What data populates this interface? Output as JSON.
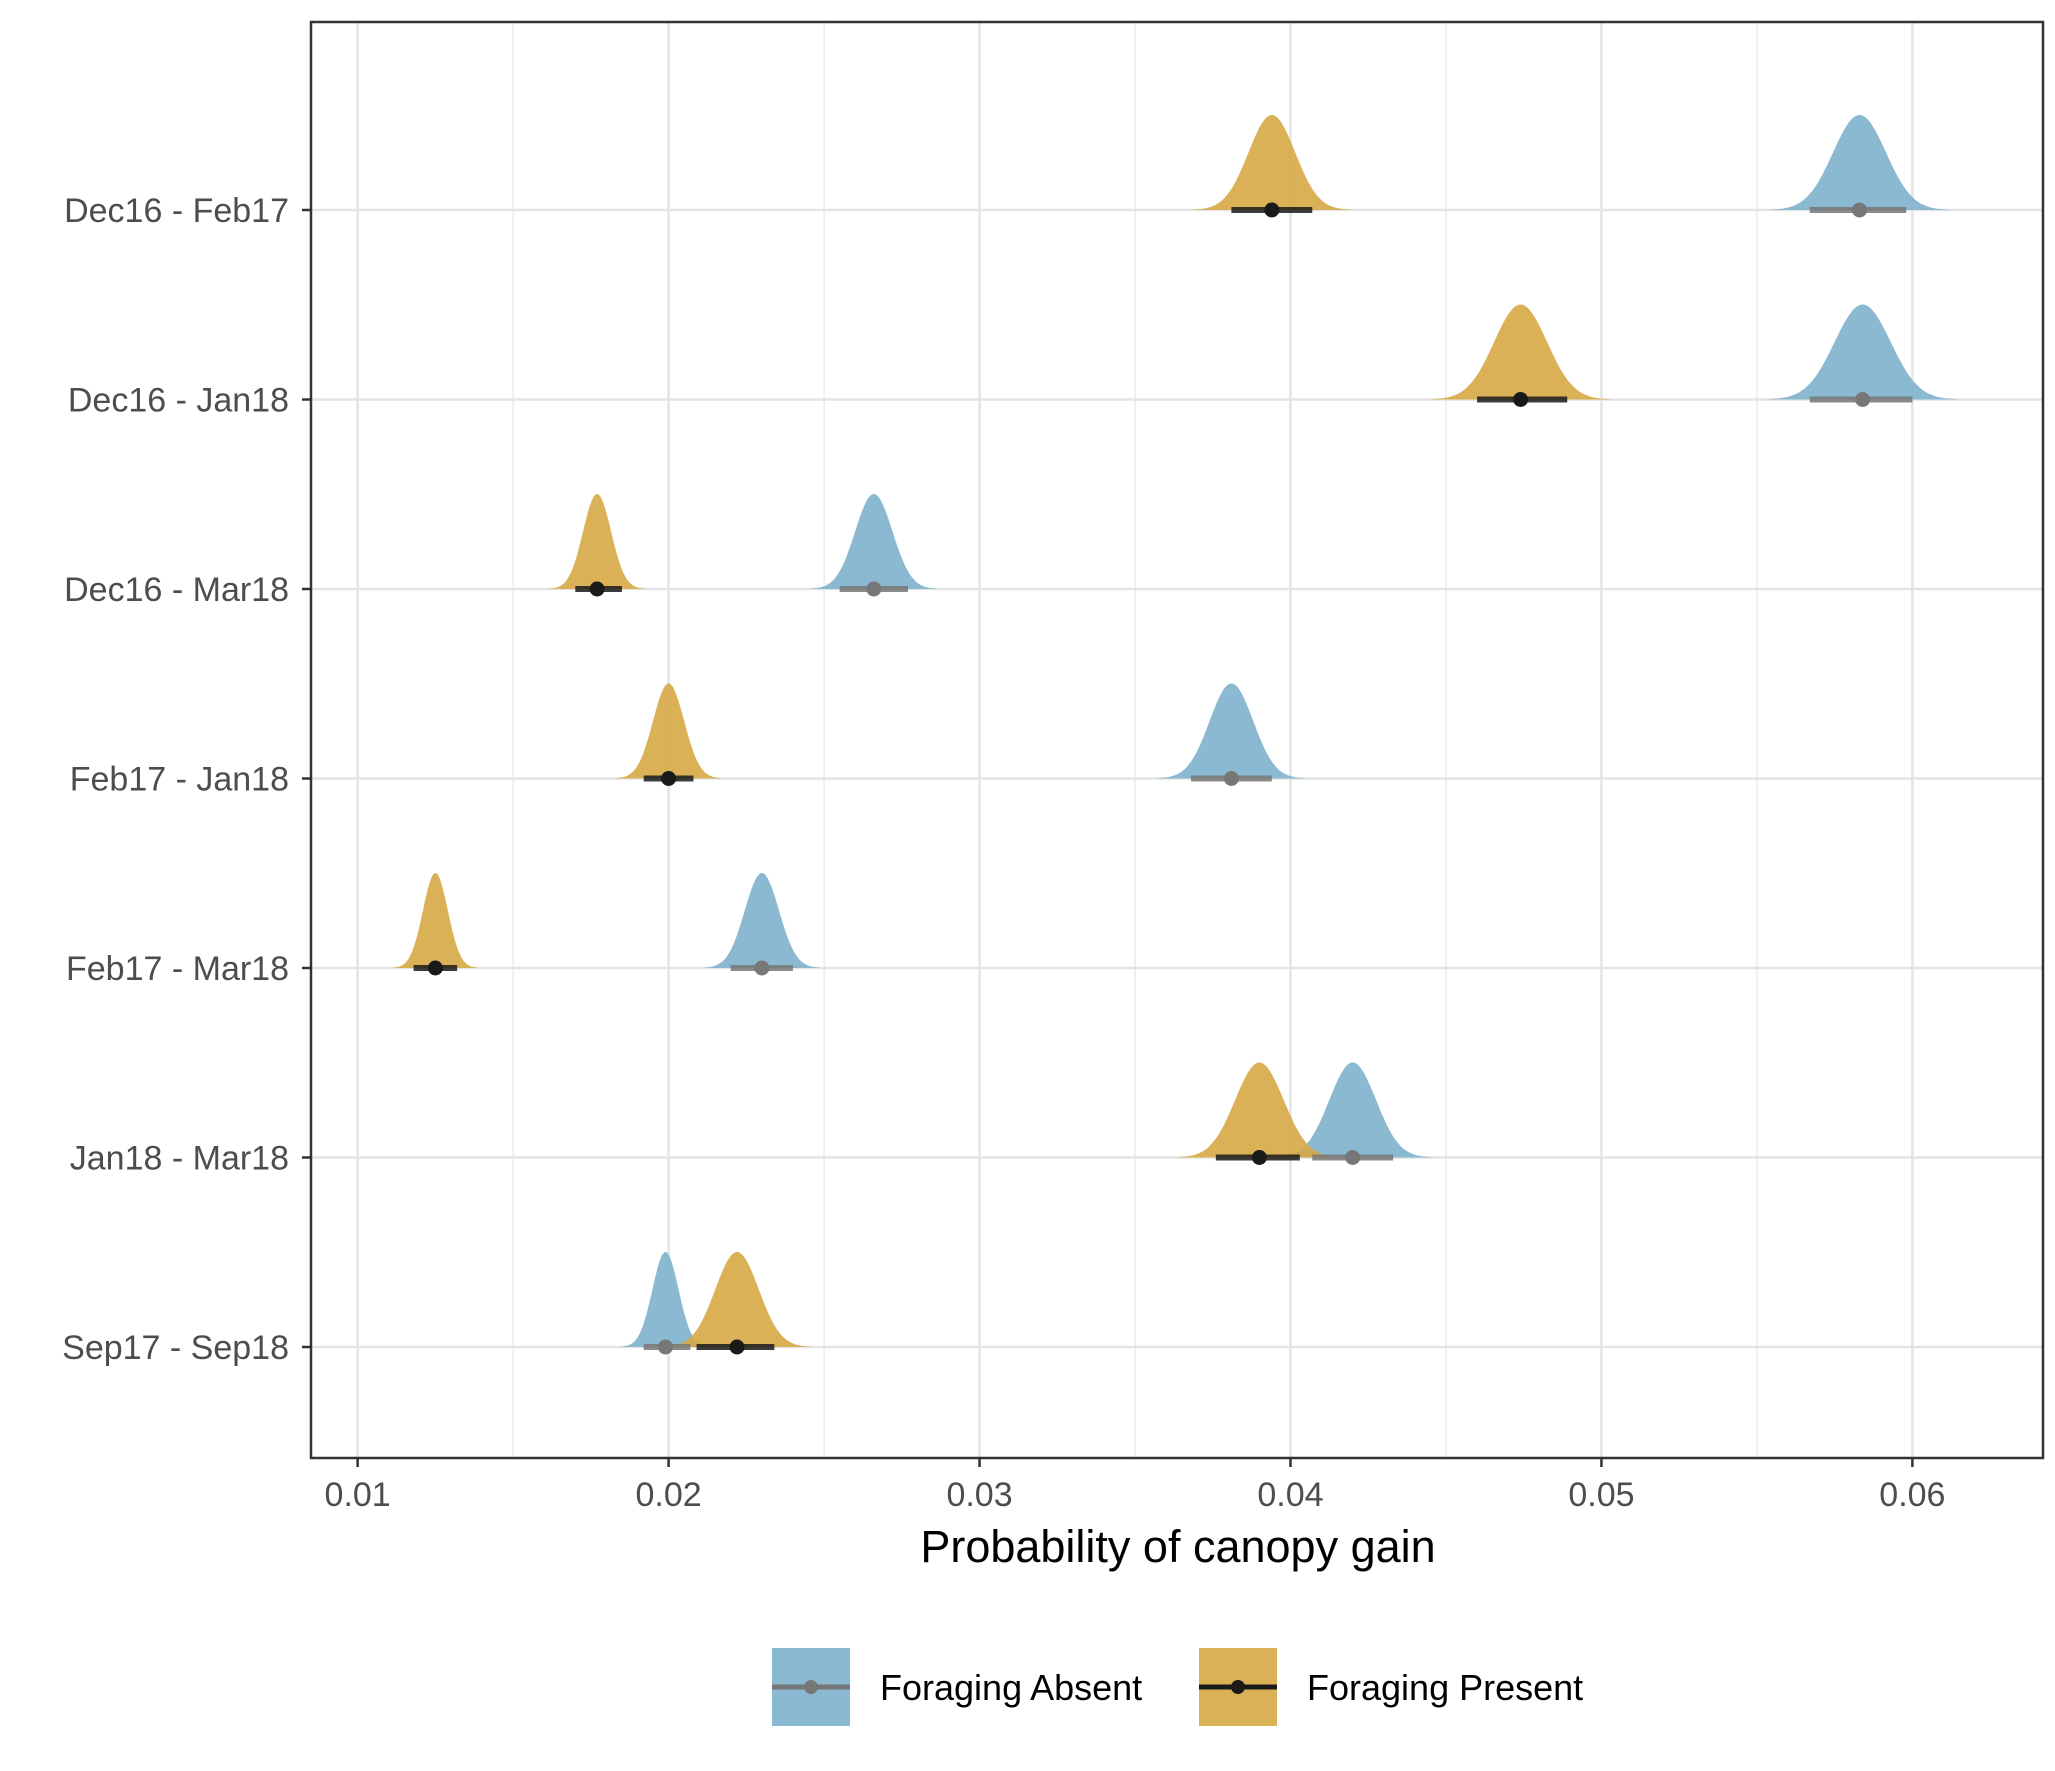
{
  "chart_data": {
    "type": "halfeye",
    "title": "",
    "xlabel": "Probability of canopy gain",
    "ylabel": "",
    "xlim": [
      0.0085,
      0.0642
    ],
    "xticks": [
      0.01,
      0.02,
      0.03,
      0.04,
      0.05,
      0.06
    ],
    "xtick_labels": [
      "0.01",
      "0.02",
      "0.03",
      "0.04",
      "0.05",
      "0.06"
    ],
    "grid": true,
    "legend_position": "bottom",
    "categories": [
      "Dec16 - Feb17",
      "Dec16 - Jan18",
      "Dec16 - Mar18",
      "Feb17 - Jan18",
      "Feb17 - Mar18",
      "Jan18 - Mar18",
      "Sep17 - Sep18"
    ],
    "series": [
      {
        "name": "Foraging Absent",
        "fill_color": "#7eb1cc",
        "point_color": "#777777",
        "median": [
          0.0583,
          0.0584,
          0.0266,
          0.0381,
          0.023,
          0.042,
          0.0199
        ],
        "interval": [
          [
            0.0567,
            0.0598
          ],
          [
            0.0567,
            0.06
          ],
          [
            0.0255,
            0.0277
          ],
          [
            0.0368,
            0.0394
          ],
          [
            0.022,
            0.024
          ],
          [
            0.0407,
            0.0433
          ],
          [
            0.0192,
            0.0207
          ]
        ],
        "sd": [
          0.00085,
          0.0009,
          0.0006,
          0.0007,
          0.00055,
          0.00075,
          0.00042
        ]
      },
      {
        "name": "Foraging Present",
        "fill_color": "#d6a944",
        "point_color": "#1a1a1a",
        "median": [
          0.0394,
          0.0474,
          0.0177,
          0.02,
          0.0125,
          0.039,
          0.0222
        ],
        "interval": [
          [
            0.0381,
            0.0407
          ],
          [
            0.046,
            0.0489
          ],
          [
            0.017,
            0.0185
          ],
          [
            0.0192,
            0.0208
          ],
          [
            0.0118,
            0.0132
          ],
          [
            0.0376,
            0.0403
          ],
          [
            0.0209,
            0.0234
          ]
        ],
        "sd": [
          0.00075,
          0.00085,
          0.00045,
          0.0005,
          0.0004,
          0.00078,
          0.0007
        ]
      }
    ]
  }
}
